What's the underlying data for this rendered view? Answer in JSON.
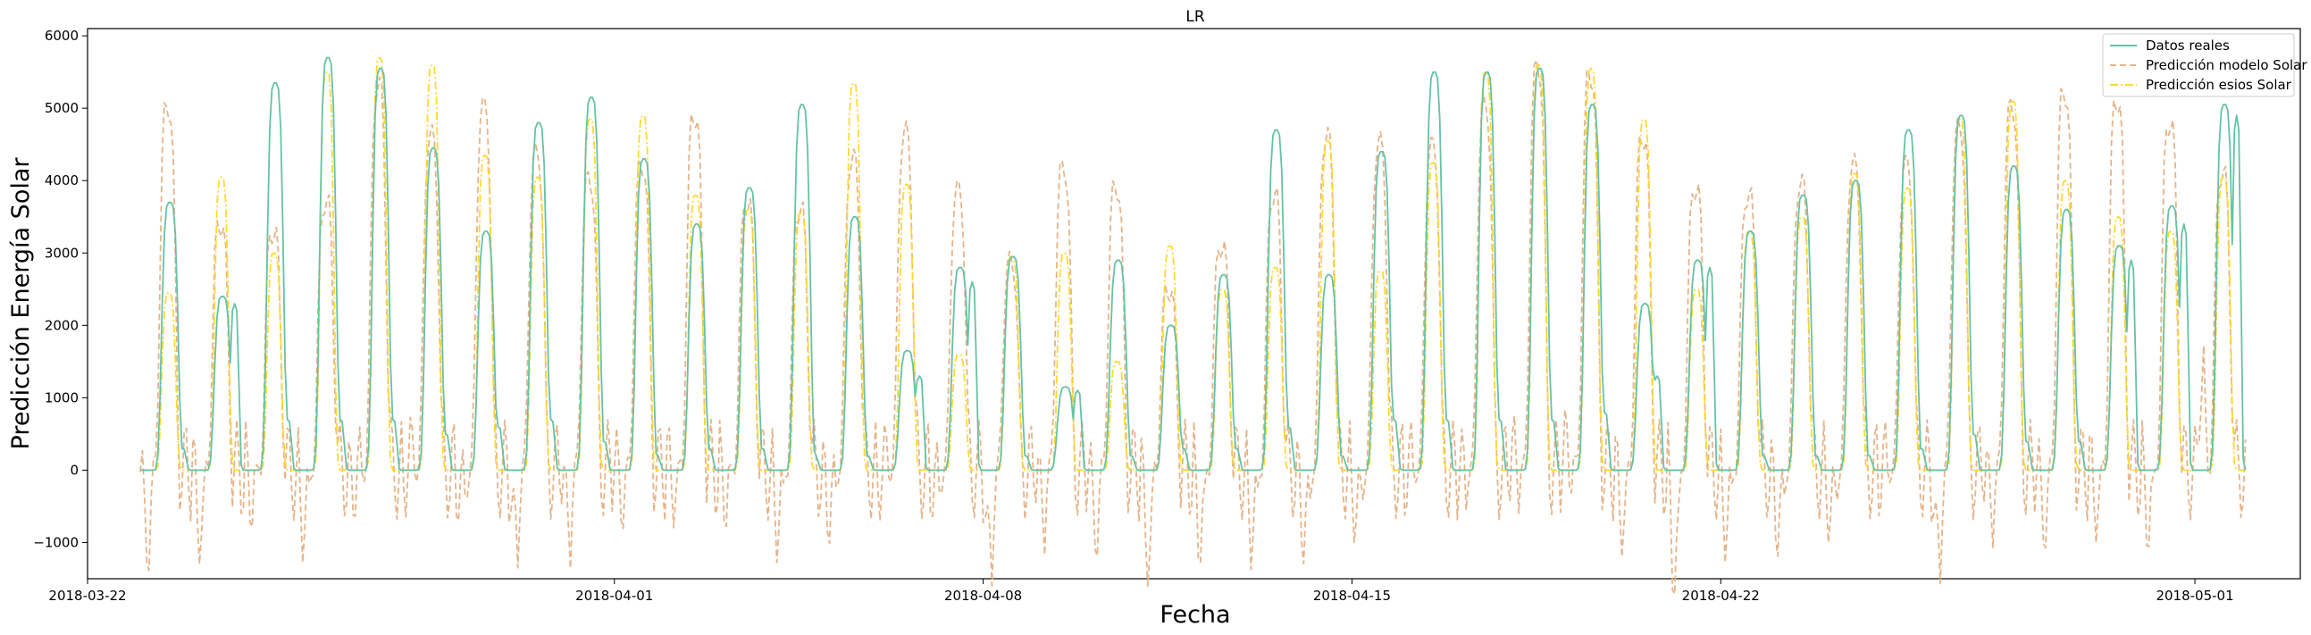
{
  "chart_data": {
    "type": "line",
    "title": "LR",
    "xlabel": "Fecha",
    "ylabel": "Predicción Energía Solar",
    "x_range": [
      "2018-03-22",
      "2018-05-03"
    ],
    "x_ticks": [
      "2018-03-22",
      "2018-04-01",
      "2018-04-08",
      "2018-04-15",
      "2018-04-22",
      "2018-05-01"
    ],
    "ylim": [
      -1500,
      6100
    ],
    "y_ticks": [
      -1000,
      0,
      1000,
      2000,
      3000,
      4000,
      5000,
      6000
    ],
    "y_tick_labels": [
      "−1000",
      "0",
      "1000",
      "2000",
      "3000",
      "4000",
      "5000",
      "6000"
    ],
    "grid": false,
    "legend_position": "top-right",
    "days": [
      "2018-03-23",
      "2018-03-24",
      "2018-03-25",
      "2018-03-26",
      "2018-03-27",
      "2018-03-28",
      "2018-03-29",
      "2018-03-30",
      "2018-03-31",
      "2018-04-01",
      "2018-04-02",
      "2018-04-03",
      "2018-04-04",
      "2018-04-05",
      "2018-04-06",
      "2018-04-07",
      "2018-04-08",
      "2018-04-09",
      "2018-04-10",
      "2018-04-11",
      "2018-04-12",
      "2018-04-13",
      "2018-04-14",
      "2018-04-15",
      "2018-04-16",
      "2018-04-17",
      "2018-04-18",
      "2018-04-19",
      "2018-04-20",
      "2018-04-21",
      "2018-04-22",
      "2018-04-23",
      "2018-04-24",
      "2018-04-25",
      "2018-04-26",
      "2018-04-27",
      "2018-04-28",
      "2018-04-29",
      "2018-04-30",
      "2018-05-01"
    ],
    "series": [
      {
        "name": "Datos reales",
        "color": "#66c2a5",
        "dash": "solid",
        "daily_peaks": [
          3700,
          2400,
          5350,
          5700,
          5550,
          4450,
          3300,
          4800,
          5150,
          4300,
          3400,
          3900,
          5050,
          3500,
          1650,
          2800,
          2950,
          1150,
          2900,
          2000,
          2700,
          4700,
          2700,
          4400,
          5500,
          5500,
          5550,
          5050,
          2300,
          2900,
          3300,
          3800,
          4000,
          4700,
          4900,
          4200,
          3600,
          3100,
          3650,
          5050
        ],
        "daily_shoulders": [
          300,
          2300,
          700,
          700,
          700,
          500,
          600,
          700,
          400,
          200,
          300,
          300,
          200,
          200,
          1300,
          2600,
          200,
          1100,
          200,
          300,
          300,
          600,
          200,
          700,
          700,
          700,
          700,
          800,
          1300,
          2800,
          200,
          200,
          200,
          300,
          500,
          400,
          400,
          2900,
          3400,
          4900
        ]
      },
      {
        "name": "Predicción modelo Solar",
        "color": "#e5b48a",
        "dash": "dashed",
        "daily_peaks": [
          5000,
          3400,
          3300,
          3700,
          5300,
          4600,
          5000,
          4350,
          4000,
          4200,
          4900,
          3700,
          3600,
          4300,
          4650,
          3850,
          2850,
          4150,
          3900,
          2500,
          3100,
          3800,
          4600,
          4500,
          4450,
          5000,
          5550,
          5450,
          4600,
          3900,
          3800,
          3950,
          4200,
          4200,
          4700,
          5000,
          5200,
          5100,
          4800,
          4100
        ],
        "daily_mins": [
          -800,
          -600,
          -200,
          -600,
          -100,
          100,
          -400,
          -950,
          -700,
          -200,
          -100,
          -200,
          -600,
          -500,
          0,
          -300,
          -1200,
          -500,
          -600,
          -900,
          -700,
          -700,
          -800,
          -600,
          0,
          -100,
          100,
          300,
          -500,
          -1150,
          -600,
          -700,
          -600,
          0,
          -1150,
          -400,
          -500,
          -300,
          -500,
          1150
        ]
      },
      {
        "name": "Predicción esios Solar",
        "color": "#ffd92f",
        "dash": "dashdot",
        "daily_peaks": [
          2450,
          4050,
          3000,
          5500,
          5700,
          5600,
          4350,
          4050,
          4850,
          4900,
          3800,
          3600,
          3550,
          5350,
          3950,
          1600,
          2950,
          3000,
          1500,
          3100,
          2500,
          2800,
          4550,
          2750,
          4250,
          5500,
          5600,
          5550,
          4850,
          2500,
          3300,
          3500,
          4100,
          3900,
          4850,
          5100,
          4000,
          3500,
          3300,
          4050
        ]
      }
    ]
  }
}
